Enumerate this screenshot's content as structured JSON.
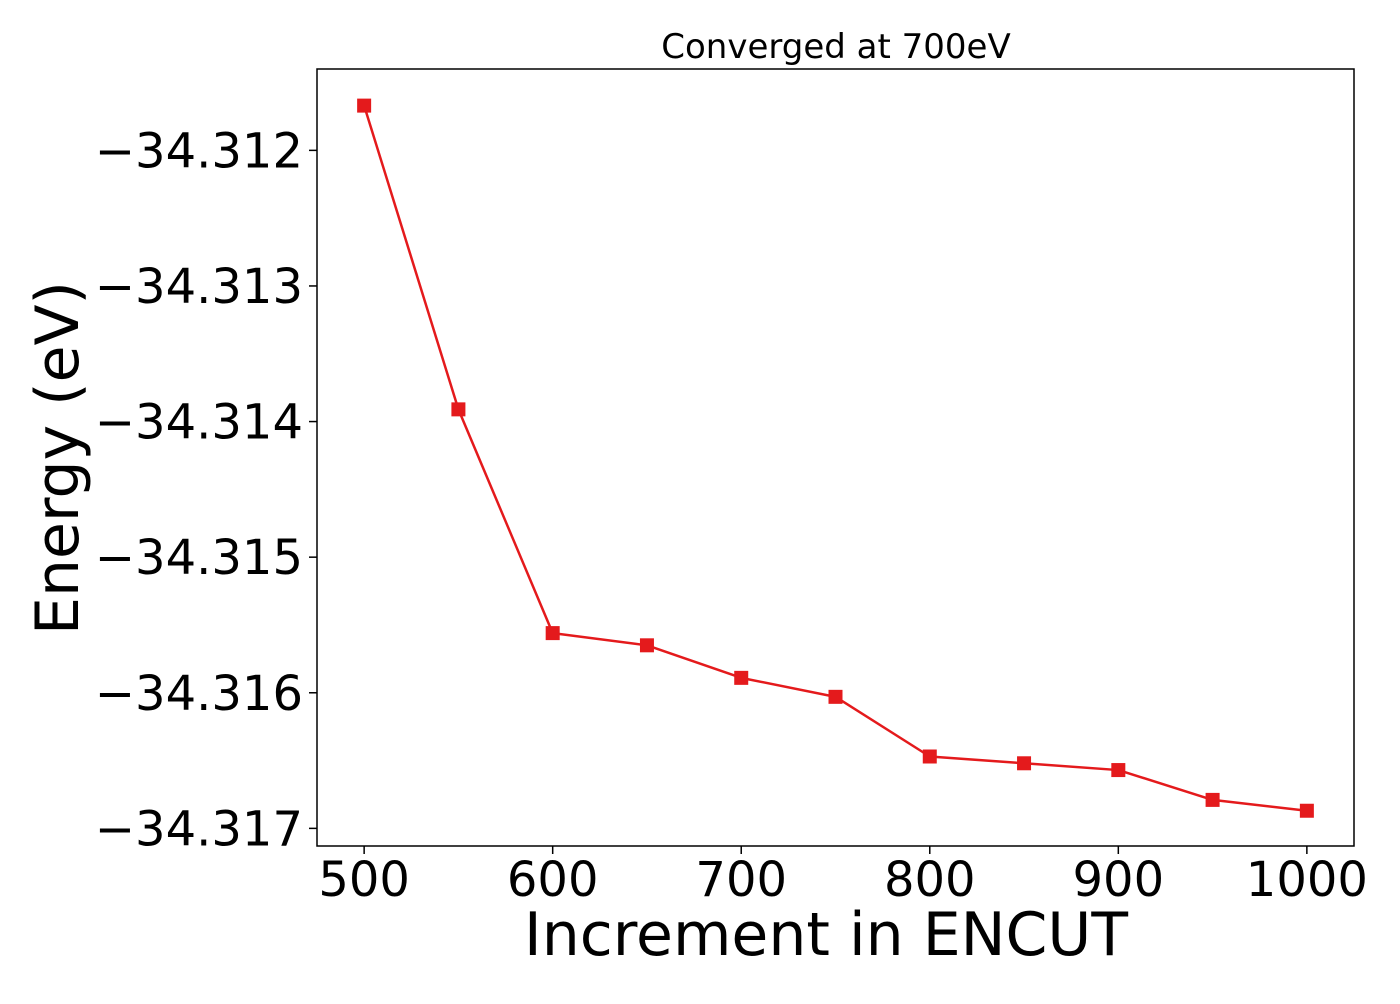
{
  "chart_data": {
    "type": "line",
    "title": "Converged at 700eV",
    "xlabel": "Increment in ENCUT",
    "ylabel": "Energy (eV)",
    "x": [
      500,
      550,
      600,
      650,
      700,
      750,
      800,
      850,
      900,
      950,
      1000
    ],
    "series": [
      {
        "values": [
          -34.31167,
          -34.31391,
          -34.31556,
          -34.31565,
          -34.31589,
          -34.31603,
          -34.31647,
          -34.31652,
          -34.31657,
          -34.31679,
          -34.31687
        ],
        "color": "#e41a1c",
        "marker": "square"
      }
    ],
    "xlim": [
      475,
      1025
    ],
    "ylim": [
      -34.31713,
      -34.3114
    ],
    "xticks": [
      500,
      600,
      700,
      800,
      900,
      1000
    ],
    "xtick_labels": [
      "500",
      "600",
      "700",
      "800",
      "900",
      "1000"
    ],
    "yticks": [
      -34.312,
      -34.313,
      -34.314,
      -34.315,
      -34.316,
      -34.317
    ],
    "ytick_labels": [
      "−34.312",
      "−34.313",
      "−34.314",
      "−34.315",
      "−34.316",
      "−34.317"
    ],
    "grid": false,
    "legend": false
  }
}
